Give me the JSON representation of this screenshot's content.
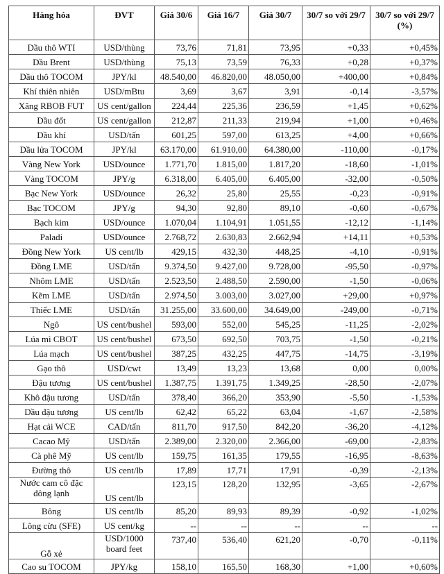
{
  "headers": [
    "Hàng hóa",
    "ĐVT",
    "Giá 30/6",
    "Giá 16/7",
    "Giá 30/7",
    "30/7 so với 29/7",
    "30/7 so với 29/7 (%)"
  ],
  "rows": [
    [
      "Dầu thô WTI",
      "USD/thùng",
      "73,76",
      "71,81",
      "73,95",
      "+0,33",
      "+0,45%"
    ],
    [
      "Dầu Brent",
      "USD/thùng",
      "75,13",
      "73,59",
      "76,33",
      "+0,28",
      "+0,37%"
    ],
    [
      "Dầu thô TOCOM",
      "JPY/kl",
      "48.540,00",
      "46.820,00",
      "48.050,00",
      "+400,00",
      "+0,84%"
    ],
    [
      "Khí thiên nhiên",
      "USD/mBtu",
      "3,69",
      "3,67",
      "3,91",
      "-0,14",
      "-3,57%"
    ],
    [
      "Xăng RBOB FUT",
      "US cent/gallon",
      "224,44",
      "225,36",
      "236,59",
      "+1,45",
      "+0,62%"
    ],
    [
      "Dầu đốt",
      "US cent/gallon",
      "212,87",
      "211,33",
      "219,94",
      "+1,00",
      "+0,46%"
    ],
    [
      "Dầu khí",
      "USD/tấn",
      "601,25",
      "597,00",
      "613,25",
      "+4,00",
      "+0,66%"
    ],
    [
      "Dầu lửa TOCOM",
      "JPY/kl",
      "63.170,00",
      "61.910,00",
      "64.380,00",
      "-110,00",
      "-0,17%"
    ],
    [
      "Vàng New York",
      "USD/ounce",
      "1.771,70",
      "1.815,00",
      "1.817,20",
      "-18,60",
      "-1,01%"
    ],
    [
      "Vàng TOCOM",
      "JPY/g",
      "6.318,00",
      "6.405,00",
      "6.405,00",
      "-32,00",
      "-0,50%"
    ],
    [
      "Bạc New York",
      "USD/ounce",
      "26,32",
      "25,80",
      "25,55",
      "-0,23",
      "-0,91%"
    ],
    [
      "Bạc TOCOM",
      "JPY/g",
      "94,30",
      "92,80",
      "89,10",
      "-0,60",
      "-0,67%"
    ],
    [
      "Bạch kim",
      "USD/ounce",
      "1.070,04",
      "1.104,91",
      "1.051,55",
      "-12,12",
      "-1,14%"
    ],
    [
      "Paladi",
      "USD/ounce",
      "2.768,72",
      "2.630,83",
      "2.662,94",
      "+14,11",
      "+0,53%"
    ],
    [
      "Đồng New York",
      "US cent/lb",
      "429,15",
      "432,30",
      "448,25",
      "-4,10",
      "-0,91%"
    ],
    [
      "Đồng LME",
      "USD/tấn",
      "9.374,50",
      "9.427,00",
      "9.728,00",
      "-95,50",
      "-0,97%"
    ],
    [
      "Nhôm LME",
      "USD/tấn",
      "2.523,50",
      "2.488,50",
      "2.590,00",
      "-1,50",
      "-0,06%"
    ],
    [
      "Kẽm LME",
      "USD/tấn",
      "2.974,50",
      "3.003,00",
      "3.027,00",
      "+29,00",
      "+0,97%"
    ],
    [
      "Thiếc LME",
      "USD/tấn",
      "31.255,00",
      "33.600,00",
      "34.649,00",
      "-249,00",
      "-0,71%"
    ],
    [
      "Ngô",
      "US cent/bushel",
      "593,00",
      "552,00",
      "545,25",
      "-11,25",
      "-2,02%"
    ],
    [
      "Lúa mì CBOT",
      "US cent/bushel",
      "673,50",
      "692,50",
      "703,75",
      "-1,50",
      "-0,21%"
    ],
    [
      "Lúa mạch",
      "US cent/bushel",
      "387,25",
      "432,25",
      "447,75",
      "-14,75",
      "-3,19%"
    ],
    [
      "Gạo thô",
      "USD/cwt",
      "13,49",
      "13,23",
      "13,68",
      "0,00",
      "0,00%"
    ],
    [
      "Đậu tương",
      "US cent/bushel",
      "1.387,75",
      "1.391,75",
      "1.349,25",
      "-28,50",
      "-2,07%"
    ],
    [
      "Khô đậu tương",
      "USD/tấn",
      "378,40",
      "366,20",
      "353,90",
      "-5,50",
      "-1,53%"
    ],
    [
      "Dầu đậu tương",
      "US cent/lb",
      "62,42",
      "65,22",
      "63,04",
      "-1,67",
      "-2,58%"
    ],
    [
      "Hạt cải WCE",
      "CAD/tấn",
      "811,70",
      "917,50",
      "842,20",
      "-36,20",
      "-4,12%"
    ],
    [
      "Cacao Mỹ",
      "USD/tấn",
      "2.389,00",
      "2.320,00",
      "2.366,00",
      "-69,00",
      "-2,83%"
    ],
    [
      "Cà phê Mỹ",
      "US cent/lb",
      "159,75",
      "161,35",
      "179,55",
      "-16,95",
      "-8,63%"
    ],
    [
      "Đường thô",
      "US cent/lb",
      "17,89",
      "17,71",
      "17,91",
      "-0,39",
      "-2,13%"
    ],
    [
      "Nước cam cô đặc đông lạnh",
      "US cent/lb",
      "123,15",
      "128,20",
      "132,95",
      "-3,65",
      "-2,67%"
    ],
    [
      "Bông",
      "US cent/lb",
      "85,20",
      "89,93",
      "89,39",
      "-0,92",
      "-1,02%"
    ],
    [
      "Lông cừu (SFE)",
      "US cent/kg",
      "--",
      "--",
      "--",
      "--",
      "--"
    ],
    [
      "Gỗ xẻ",
      "USD/1000 board feet",
      "737,40",
      "536,40",
      "621,20",
      "-0,70",
      "-0,11%"
    ],
    [
      "Cao su TOCOM",
      "JPY/kg",
      "158,10",
      "165,50",
      "168,30",
      "+1,00",
      "+0,60%"
    ]
  ]
}
